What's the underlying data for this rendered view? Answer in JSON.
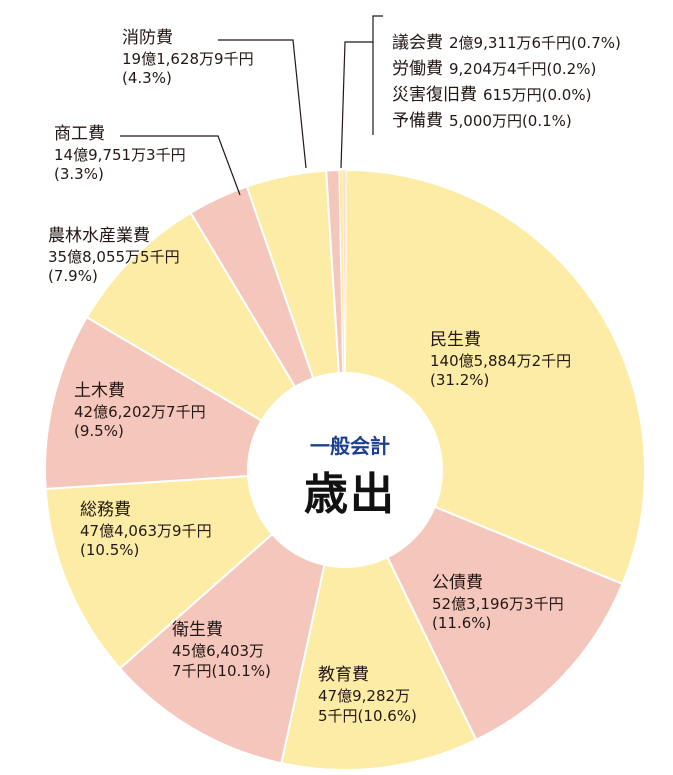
{
  "chart_data": {
    "type": "pie",
    "title": "歳出",
    "subtitle": "一般会計",
    "donut": true,
    "colors": {
      "light": "#fdeca6",
      "pink": "#f5c6bb",
      "line": "#ffffff"
    },
    "slices": [
      {
        "name": "民生費",
        "amount": "140億5,884万2千円",
        "percent": "(31.2%)",
        "value": 31.2,
        "color": "light"
      },
      {
        "name": "公債費",
        "amount": "52億3,196万3千円",
        "percent": "(11.6%)",
        "value": 11.6,
        "color": "pink"
      },
      {
        "name": "教育費",
        "amount": "47億9,282万5千円",
        "percent": "(10.6%)",
        "value": 10.6,
        "color": "light"
      },
      {
        "name": "衛生費",
        "amount": "45億6,403万7千円",
        "percent": "(10.1%)",
        "value": 10.1,
        "color": "pink"
      },
      {
        "name": "総務費",
        "amount": "47億4,063万9千円",
        "percent": "(10.5%)",
        "value": 10.5,
        "color": "light"
      },
      {
        "name": "土木費",
        "amount": "42億6,202万7千円",
        "percent": "(9.5%)",
        "value": 9.5,
        "color": "pink"
      },
      {
        "name": "農林水産業費",
        "amount": "35億8,055万5千円",
        "percent": "(7.9%)",
        "value": 7.9,
        "color": "light"
      },
      {
        "name": "商工費",
        "amount": "14億9,751万3千円",
        "percent": "(3.3%)",
        "value": 3.3,
        "color": "pink"
      },
      {
        "name": "消防費",
        "amount": "19億1,628万9千円",
        "percent": "(4.3%)",
        "value": 4.3,
        "color": "light"
      },
      {
        "name": "議会費",
        "amount": "2億9,311万6千円",
        "percent": "(0.7%)",
        "value": 0.7,
        "color": "pink"
      },
      {
        "name": "労働費",
        "amount": "9,204万4千円",
        "percent": "(0.2%)",
        "value": 0.2,
        "color": "light"
      },
      {
        "name": "災害復旧費",
        "amount": "615万円",
        "percent": "(0.0%)",
        "value": 0.0,
        "color": "pink"
      },
      {
        "name": "予備費",
        "amount": "5,000万円",
        "percent": "(0.1%)",
        "value": 0.1,
        "color": "light"
      }
    ]
  },
  "labels": {
    "minsei": {
      "name": "民生費",
      "amount": "140億5,884万2千円",
      "percent": "(31.2%)"
    },
    "kousai": {
      "name": "公債費",
      "amount": "52億3,196万3千円",
      "percent": "(11.6%)"
    },
    "kyouiku": {
      "name": "教育費",
      "amount1": "47億9,282万",
      "amount2": "5千円",
      "percent": "(10.6%)"
    },
    "eisei": {
      "name": "衛生費",
      "amount1": "45億6,403万",
      "amount2": "7千円",
      "percent": "(10.1%)"
    },
    "soumu": {
      "name": "総務費",
      "amount": "47億4,063万9千円",
      "percent": "(10.5%)"
    },
    "doboku": {
      "name": "土木費",
      "amount": "42億6,202万7千円",
      "percent": "(9.5%)"
    },
    "nourin": {
      "name": "農林水産業費",
      "amount": "35億8,055万5千円",
      "percent": "(7.9%)"
    },
    "shoukou": {
      "name": "商工費",
      "amount": "14億9,751万3千円",
      "percent": "(3.3%)"
    },
    "shoubou": {
      "name": "消防費",
      "amount": "19億1,628万9千円",
      "percent": "(4.3%)"
    },
    "small": [
      {
        "name": "議会費",
        "amount": "2億9,311万6千円(0.7%)"
      },
      {
        "name": "労働費",
        "amount": "9,204万4千円(0.2%)"
      },
      {
        "name": "災害復旧費",
        "amount": "615万円(0.0%)"
      },
      {
        "name": "予備費",
        "amount": "5,000万円(0.1%)"
      }
    ]
  }
}
